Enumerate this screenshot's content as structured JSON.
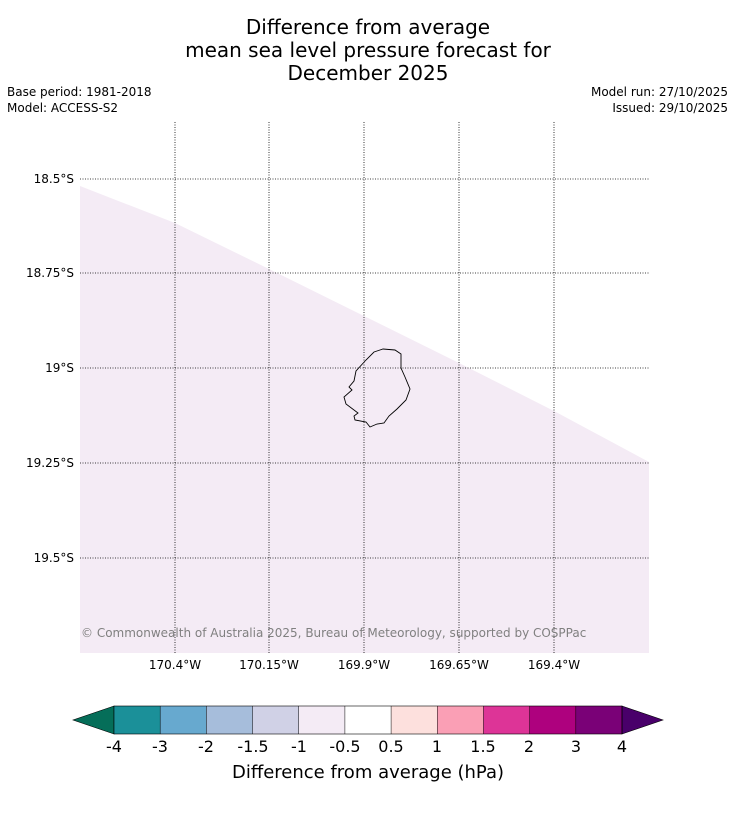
{
  "title": {
    "line1": "Difference from average",
    "line2": "mean sea level pressure forecast for",
    "line3": "December 2025"
  },
  "meta": {
    "base_period": "Base period: 1981-2018",
    "model": "Model: ACCESS-S2",
    "model_run": "Model run: 27/10/2025",
    "issued": "Issued: 29/10/2025"
  },
  "map": {
    "lat_labels": [
      "18.5°S",
      "18.75°S",
      "19°S",
      "19.25°S",
      "19.5°S"
    ],
    "lon_labels": [
      "170.4°W",
      "170.15°W",
      "169.9°W",
      "169.65°W",
      "169.4°W"
    ],
    "copyright": "© Commonwealth of Australia 2025, Bureau of Meteorology, supported by COSPPac",
    "shaded_category": "-1 to -0.5",
    "shade_color": "#f4ebf5",
    "place": "Niue"
  },
  "colorbar": {
    "title": "Difference from average (hPa)",
    "tick_labels": [
      "-4",
      "-3",
      "-2",
      "-1.5",
      "-1",
      "-0.5",
      "0.5",
      "1",
      "1.5",
      "2",
      "3",
      "4"
    ],
    "colors": {
      "under": "#056e59",
      "bins": [
        "#1b9099",
        "#67a9cf",
        "#a6bddb",
        "#d0d1e6",
        "#f4ebf5",
        "#ffffff",
        "#fde0dd",
        "#fa9fb5",
        "#dd3497",
        "#ae017e",
        "#7a0177"
      ],
      "over": "#49006a"
    }
  }
}
